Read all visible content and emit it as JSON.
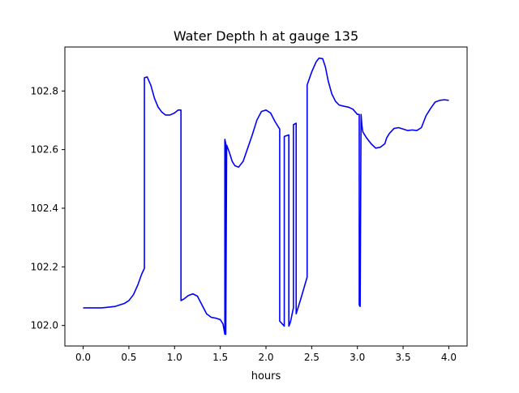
{
  "chart_data": {
    "type": "line",
    "title": "Water Depth h at gauge 135",
    "xlabel": "hours",
    "ylabel": "",
    "xlim": [
      -0.2,
      4.2
    ],
    "ylim": [
      101.93,
      102.95
    ],
    "xticks": [
      0.0,
      0.5,
      1.0,
      1.5,
      2.0,
      2.5,
      3.0,
      3.5,
      4.0
    ],
    "xtick_labels": [
      "0.0",
      "0.5",
      "1.0",
      "1.5",
      "2.0",
      "2.5",
      "3.0",
      "3.5",
      "4.0"
    ],
    "yticks": [
      102.0,
      102.2,
      102.4,
      102.6,
      102.8
    ],
    "ytick_labels": [
      "102.0",
      "102.2",
      "102.4",
      "102.6",
      "102.8"
    ],
    "grid": false,
    "series": [
      {
        "color": "#0000ff",
        "x": [
          0.0,
          0.2,
          0.35,
          0.45,
          0.5,
          0.55,
          0.6,
          0.64,
          0.67,
          0.67,
          0.7,
          0.74,
          0.78,
          0.82,
          0.86,
          0.9,
          0.95,
          1.0,
          1.04,
          1.07,
          1.07,
          1.1,
          1.15,
          1.2,
          1.25,
          1.3,
          1.35,
          1.4,
          1.45,
          1.5,
          1.53,
          1.55,
          1.55,
          1.56,
          1.56,
          1.57,
          1.6,
          1.63,
          1.66,
          1.7,
          1.75,
          1.8,
          1.85,
          1.9,
          1.95,
          2.0,
          2.05,
          2.1,
          2.15,
          2.15,
          2.2,
          2.2,
          2.25,
          2.25,
          2.26,
          2.27,
          2.28,
          2.3,
          2.3,
          2.33,
          2.33,
          2.38,
          2.45,
          2.45,
          2.5,
          2.55,
          2.58,
          2.62,
          2.65,
          2.68,
          2.72,
          2.76,
          2.8,
          2.85,
          2.9,
          2.95,
          3.0,
          3.02,
          3.02,
          3.03,
          3.04,
          3.04,
          3.05,
          3.06,
          3.07,
          3.1,
          3.15,
          3.2,
          3.25,
          3.3,
          3.32,
          3.35,
          3.4,
          3.45,
          3.5,
          3.55,
          3.6,
          3.65,
          3.7,
          3.75,
          3.8,
          3.85,
          3.9,
          3.95,
          4.0
        ],
        "y": [
          102.06,
          102.06,
          102.065,
          102.075,
          102.085,
          102.105,
          102.14,
          102.175,
          102.195,
          102.845,
          102.848,
          102.82,
          102.775,
          102.745,
          102.728,
          102.718,
          102.718,
          102.725,
          102.735,
          102.735,
          102.085,
          102.09,
          102.102,
          102.108,
          102.1,
          102.07,
          102.04,
          102.028,
          102.025,
          102.02,
          102.005,
          101.97,
          102.635,
          102.62,
          101.97,
          102.615,
          102.59,
          102.56,
          102.545,
          102.54,
          102.56,
          102.605,
          102.65,
          102.7,
          102.73,
          102.735,
          102.725,
          102.695,
          102.67,
          102.015,
          101.998,
          102.645,
          102.65,
          101.998,
          102.005,
          102.015,
          102.03,
          102.06,
          102.685,
          102.69,
          102.04,
          102.09,
          102.165,
          102.82,
          102.865,
          102.9,
          102.912,
          102.91,
          102.882,
          102.835,
          102.79,
          102.765,
          102.752,
          102.748,
          102.745,
          102.738,
          102.72,
          102.72,
          102.07,
          102.065,
          102.72,
          102.72,
          102.68,
          102.66,
          102.655,
          102.64,
          102.62,
          102.605,
          102.608,
          102.62,
          102.64,
          102.655,
          102.672,
          102.675,
          102.67,
          102.665,
          102.667,
          102.665,
          102.675,
          102.715,
          102.74,
          102.762,
          102.768,
          102.77,
          102.768
        ]
      }
    ]
  }
}
